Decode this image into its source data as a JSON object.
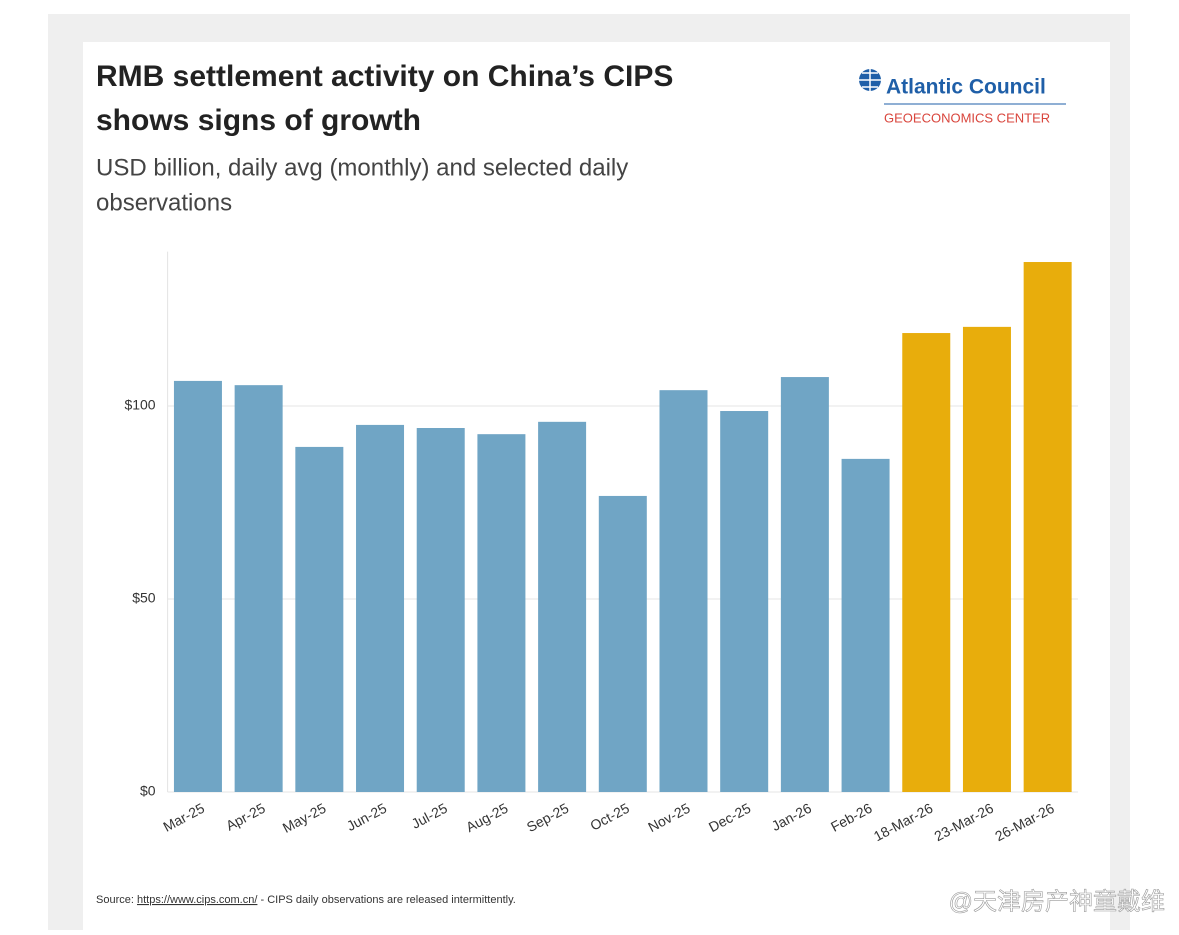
{
  "chart_data": {
    "type": "bar",
    "title": [
      "RMB settlement activity on China’s CIPS",
      "shows signs of growth"
    ],
    "subtitle": [
      "USD billion, daily avg (monthly) and selected daily",
      "observations"
    ],
    "logo": {
      "name": "Atlantic Council",
      "unit": "GEOECONOMICS CENTER"
    },
    "categories": [
      "Mar-25",
      "Apr-25",
      "May-25",
      "Jun-25",
      "Jul-25",
      "Aug-25",
      "Sep-25",
      "Oct-25",
      "Nov-25",
      "Dec-25",
      "Jan-26",
      "Feb-26",
      "18-Mar-26",
      "23-Mar-26",
      "26-Mar-26"
    ],
    "values": [
      106.5,
      105.4,
      89.4,
      95.1,
      94.3,
      92.7,
      95.9,
      76.7,
      104.1,
      98.7,
      107.5,
      86.3,
      118.9,
      120.5,
      137.3
    ],
    "colors": [
      "#70a5c5",
      "#70a5c5",
      "#70a5c5",
      "#70a5c5",
      "#70a5c5",
      "#70a5c5",
      "#70a5c5",
      "#70a5c5",
      "#70a5c5",
      "#70a5c5",
      "#70a5c5",
      "#70a5c5",
      "#e8ad0c",
      "#e8ad0c",
      "#e8ad0c"
    ],
    "ylim": [
      0,
      140
    ],
    "yticks": [
      {
        "value": 0,
        "label": "$0"
      },
      {
        "value": 50,
        "label": "$50"
      },
      {
        "value": 100,
        "label": "$100"
      }
    ],
    "grid": true,
    "source": {
      "prefix": "Source:",
      "link": "https://www.cips.com.cn/",
      "note": "- CIPS daily observations are released intermittently."
    },
    "watermark": "@天津房产神童戴维"
  }
}
